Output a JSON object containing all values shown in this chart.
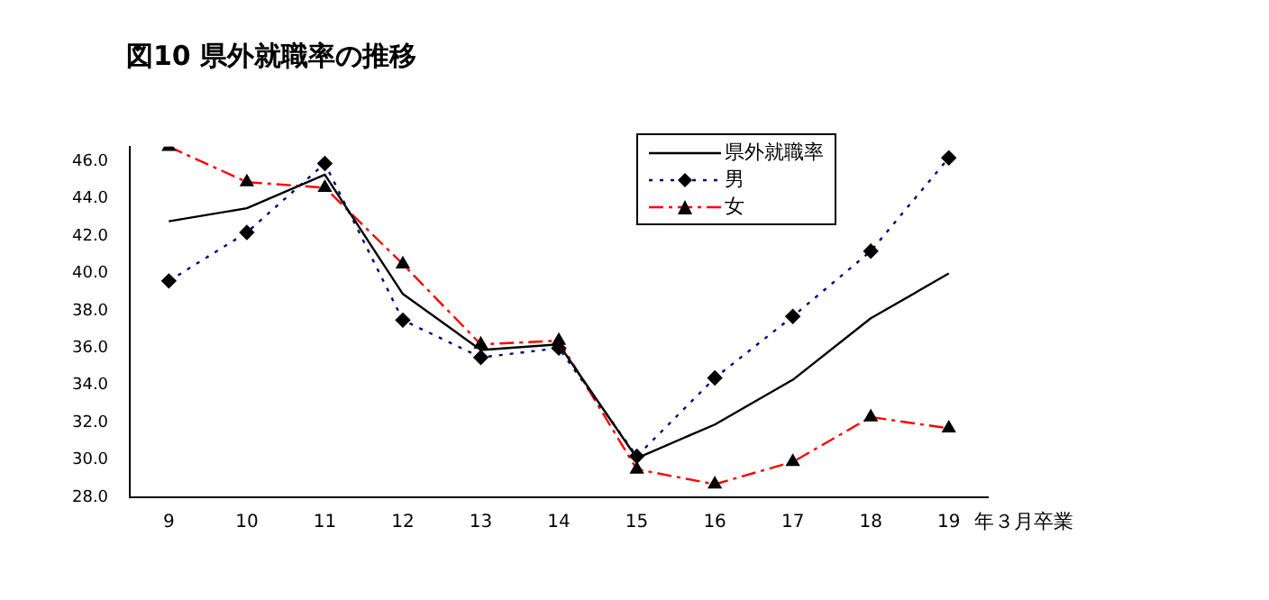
{
  "chart_data": {
    "type": "line",
    "title": "図10  県外就職率の推移",
    "xlabel": "年３月卒業",
    "categories": [
      "9",
      "10",
      "11",
      "12",
      "13",
      "14",
      "15",
      "16",
      "17",
      "18",
      "19"
    ],
    "series": [
      {
        "name": "県外就職率",
        "color": "#000000",
        "line_style": "solid",
        "marker": "none",
        "values": [
          42.8,
          43.5,
          45.3,
          38.9,
          35.9,
          36.2,
          30.1,
          31.9,
          34.3,
          37.6,
          40.0
        ]
      },
      {
        "name": "男",
        "color": "#000080",
        "line_style": "dotted",
        "marker": "diamond",
        "values": [
          39.6,
          42.2,
          45.9,
          37.5,
          35.5,
          36.0,
          30.2,
          34.4,
          37.7,
          41.2,
          46.2
        ]
      },
      {
        "name": "女",
        "color": "#ff0000",
        "line_style": "dashed",
        "marker": "triangle",
        "values": [
          46.8,
          44.9,
          44.6,
          40.5,
          36.2,
          36.4,
          29.5,
          28.7,
          29.9,
          32.3,
          31.7
        ]
      }
    ],
    "ylim": [
      28,
      46.8
    ],
    "yticks": [
      {
        "value": 28,
        "label": "28.0"
      },
      {
        "value": 30,
        "label": "30.0"
      },
      {
        "value": 32,
        "label": "32.0"
      },
      {
        "value": 34,
        "label": "34.0"
      },
      {
        "value": 36,
        "label": "36.0"
      },
      {
        "value": 38,
        "label": "38.0"
      },
      {
        "value": 40,
        "label": "40.0"
      },
      {
        "value": 42,
        "label": "42.0"
      },
      {
        "value": 44,
        "label": "44.0"
      },
      {
        "value": 46,
        "label": "46.0"
      }
    ],
    "grid": false,
    "legend": "top right"
  }
}
